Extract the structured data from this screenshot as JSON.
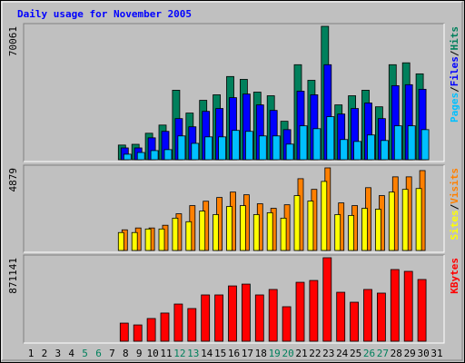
{
  "chart_data": {
    "type": "bar",
    "title": "Daily usage for November 2005",
    "separator": "/",
    "categories": [
      "1",
      "2",
      "3",
      "4",
      "5",
      "6",
      "7",
      "8",
      "9",
      "10",
      "11",
      "12",
      "13",
      "14",
      "15",
      "16",
      "17",
      "18",
      "19",
      "20",
      "21",
      "22",
      "23",
      "24",
      "25",
      "26",
      "27",
      "28",
      "29",
      "30",
      "31"
    ],
    "category_colors": [
      "#000000",
      "#000000",
      "#000000",
      "#000000",
      "#00805c",
      "#00805c",
      "#000000",
      "#000000",
      "#000000",
      "#000000",
      "#000000",
      "#00805c",
      "#00805c",
      "#000000",
      "#000000",
      "#000000",
      "#000000",
      "#000000",
      "#00805c",
      "#00805c",
      "#000000",
      "#000000",
      "#000000",
      "#000000",
      "#000000",
      "#00805c",
      "#00805c",
      "#000000",
      "#000000",
      "#000000",
      "#000000"
    ],
    "panels": [
      {
        "ylim": [
          0,
          70061
        ],
        "yticks": [
          70061
        ],
        "series": [
          {
            "name": "Hits",
            "color": "#00805c",
            "values": [
              0,
              0,
              0,
              0,
              0,
              0,
              0,
              7700,
              8100,
              13900,
              18200,
              36500,
              24500,
              31200,
              34100,
              43700,
              42200,
              35500,
              33600,
              20200,
              49900,
              41700,
              70061,
              28800,
              33600,
              36500,
              27800,
              49900,
              50900,
              45100,
              0
            ]
          },
          {
            "name": "Files",
            "color": "#0000ff",
            "values": [
              0,
              0,
              0,
              0,
              0,
              0,
              0,
              6200,
              6200,
              11500,
              14900,
              21600,
              17300,
              25400,
              26900,
              32600,
              34500,
              28800,
              25900,
              15800,
              36000,
              34100,
              49900,
              24000,
              26900,
              29800,
              21600,
              38900,
              39400,
              37000,
              0
            ]
          },
          {
            "name": "Pages",
            "color": "#00c0ff",
            "values": [
              0,
              0,
              0,
              0,
              0,
              0,
              0,
              2900,
              3800,
              4800,
              5300,
              12500,
              8600,
              12000,
              12000,
              15400,
              14900,
              12500,
              12500,
              8200,
              17800,
              16300,
              22600,
              10600,
              9600,
              13000,
              10100,
              17800,
              17800,
              15800,
              0
            ]
          }
        ]
      },
      {
        "ylim": [
          0,
          4879
        ],
        "yticks": [
          4879
        ],
        "series": [
          {
            "name": "Visits",
            "color": "#ff8000",
            "values": [
              0,
              0,
              0,
              0,
              0,
              0,
              0,
              1220,
              1330,
              1330,
              1490,
              2170,
              2650,
              2910,
              3130,
              3450,
              3290,
              2760,
              2490,
              2700,
              4240,
              3610,
              4879,
              2810,
              2650,
              3710,
              3240,
              4350,
              4350,
              4720,
              0
            ]
          },
          {
            "name": "Sites",
            "color": "#ffff00",
            "values": [
              0,
              0,
              0,
              0,
              0,
              0,
              0,
              1060,
              1060,
              1270,
              1270,
              1910,
              1700,
              2330,
              2120,
              2600,
              2650,
              2120,
              2230,
              1910,
              3240,
              2920,
              4080,
              2120,
              2070,
              2490,
              2440,
              3450,
              3610,
              3660,
              0
            ]
          }
        ]
      },
      {
        "ylim": [
          0,
          871141
        ],
        "yticks": [
          871141
        ],
        "series": [
          {
            "name": "KBytes",
            "color": "#ff0000",
            "values": [
              0,
              0,
              0,
              0,
              0,
              0,
              0,
              189000,
              170000,
              237000,
              294000,
              388000,
              341000,
              483000,
              483000,
              577000,
              596000,
              483000,
              540000,
              360000,
              615000,
              634000,
              871141,
              511000,
              407000,
              540000,
              502000,
              748000,
              729000,
              644000,
              0
            ]
          }
        ]
      }
    ]
  }
}
